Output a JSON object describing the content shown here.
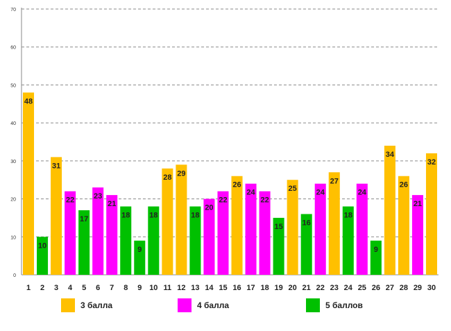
{
  "chart_data": {
    "type": "bar",
    "title": "",
    "xlabel": "",
    "ylabel": "",
    "ylim": [
      0,
      70
    ],
    "yticks": [
      0,
      10,
      20,
      30,
      40,
      50,
      60,
      70
    ],
    "categories": [
      "1",
      "2",
      "3",
      "4",
      "5",
      "6",
      "7",
      "8",
      "9",
      "10",
      "11",
      "12",
      "13",
      "14",
      "15",
      "16",
      "17",
      "18",
      "19",
      "20",
      "21",
      "22",
      "23",
      "24",
      "25",
      "26",
      "27",
      "28",
      "29",
      "30"
    ],
    "values": [
      48,
      10,
      31,
      22,
      17,
      23,
      21,
      18,
      9,
      18,
      28,
      29,
      18,
      20,
      22,
      26,
      24,
      22,
      15,
      25,
      16,
      24,
      27,
      18,
      24,
      9,
      34,
      26,
      21,
      32
    ],
    "series_index": [
      0,
      2,
      0,
      1,
      2,
      1,
      1,
      2,
      2,
      2,
      0,
      0,
      2,
      1,
      1,
      0,
      1,
      1,
      2,
      0,
      2,
      1,
      0,
      2,
      1,
      2,
      0,
      0,
      1,
      0
    ],
    "series": [
      {
        "name": "3 балла",
        "color": "#FFC000"
      },
      {
        "name": "4 балла",
        "color": "#FF00FF"
      },
      {
        "name": "5 баллов",
        "color": "#00C000"
      }
    ],
    "grid": true,
    "legend_position": "bottom"
  }
}
